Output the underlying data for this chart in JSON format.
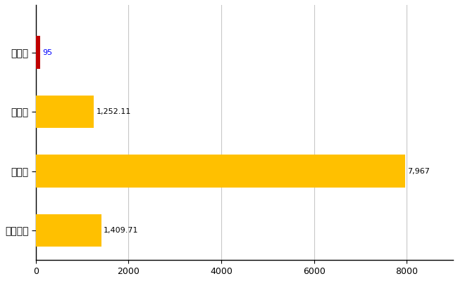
{
  "categories": [
    "草津町",
    "県平均",
    "県最大",
    "全国平均"
  ],
  "values": [
    95,
    1252.11,
    7967,
    1409.71
  ],
  "labels": [
    "95",
    "1,252.11",
    "7,967",
    "1,409.71"
  ],
  "bar_colors": [
    "#c00000",
    "#ffc000",
    "#ffc000",
    "#ffc000"
  ],
  "xlim": [
    0,
    9000
  ],
  "xticks": [
    0,
    2000,
    4000,
    6000,
    8000
  ],
  "grid_color": "#c8c8c8",
  "background_color": "#ffffff",
  "label_color_highlight": "#0000ff",
  "label_color_normal": "#000000",
  "label_fontsize": 8,
  "tick_fontsize": 9,
  "ytick_fontsize": 10,
  "bar_height": 0.55
}
